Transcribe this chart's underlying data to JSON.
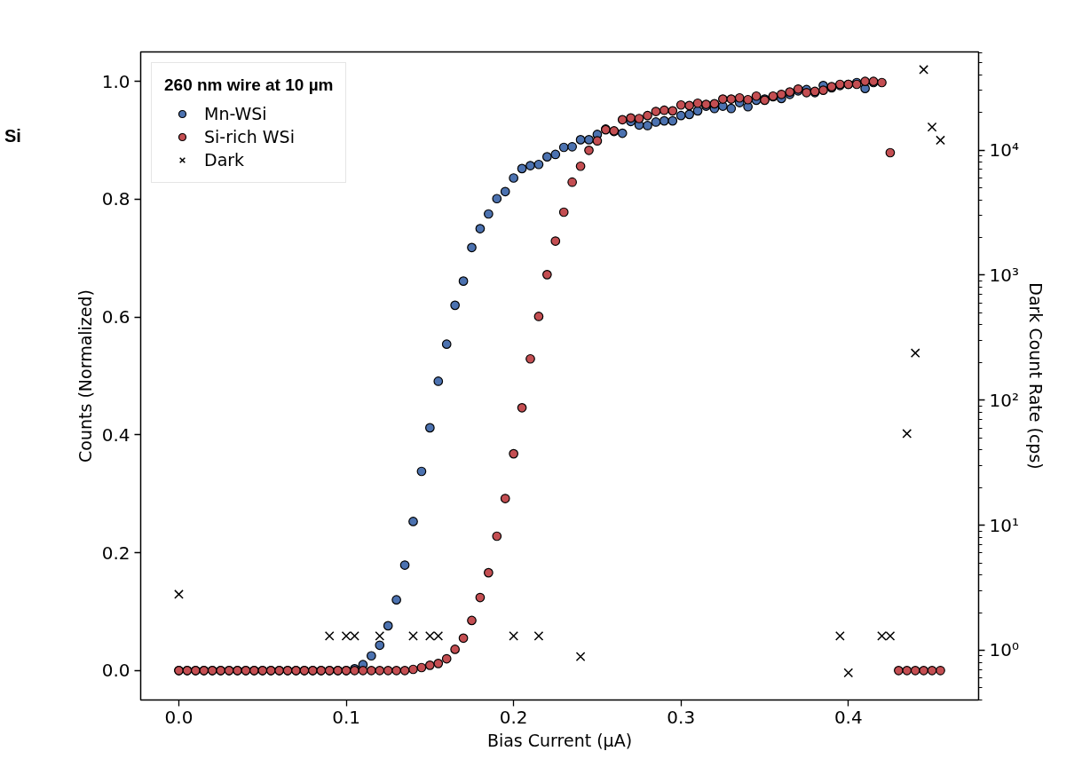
{
  "chart_data": {
    "type": "scatter",
    "xlabel": "Bias Current (μA)",
    "ylabel": "Counts (Normalized)",
    "y2label": "Dark Count Rate (cps)",
    "legend_title": "260 nm wire at 10 µm",
    "legend": "top left",
    "grid": false,
    "annotations": [
      "Si"
    ],
    "xlim": [
      -0.0228,
      0.4778
    ],
    "xticks": [
      {
        "value": 0,
        "label": "0.0"
      },
      0.1,
      0.2,
      0.3,
      0.4
    ],
    "ylim": [
      -0.05,
      1.05
    ],
    "yticks": [
      {
        "value": 0,
        "label": "0.0"
      },
      0.2,
      0.4,
      0.6,
      0.8,
      {
        "value": 1,
        "label": "1.0"
      }
    ],
    "log": "y2",
    "y2lim": [
      0.4,
      61000
    ],
    "y2ticks": [
      {
        "value": 1,
        "label": "10⁰"
      },
      {
        "value": 10,
        "label": "10¹"
      },
      {
        "value": 100,
        "label": "10²"
      },
      {
        "value": 1000,
        "label": "10³"
      },
      {
        "value": 10000,
        "label": "10⁴"
      }
    ],
    "series": [
      {
        "name": "Mn-WSi",
        "color": "#4c72b0",
        "marker": "circle",
        "x": [
          0.0,
          0.005,
          0.01,
          0.015,
          0.02,
          0.025,
          0.03,
          0.035,
          0.04,
          0.045,
          0.05,
          0.055,
          0.06,
          0.065,
          0.07,
          0.075,
          0.08,
          0.085,
          0.09,
          0.095,
          0.1,
          0.105,
          0.11,
          0.115,
          0.12,
          0.125,
          0.13,
          0.135,
          0.14,
          0.145,
          0.15,
          0.155,
          0.16,
          0.165,
          0.17,
          0.175,
          0.18,
          0.185,
          0.19,
          0.195,
          0.2,
          0.205,
          0.21,
          0.215,
          0.22,
          0.225,
          0.23,
          0.235,
          0.24,
          0.245,
          0.25,
          0.255,
          0.26,
          0.265,
          0.27,
          0.275,
          0.28,
          0.285,
          0.29,
          0.295,
          0.3,
          0.305,
          0.31,
          0.315,
          0.32,
          0.325,
          0.33,
          0.335,
          0.34,
          0.345,
          0.35,
          0.355,
          0.36,
          0.365,
          0.37,
          0.375,
          0.38,
          0.385,
          0.39,
          0.395,
          0.4,
          0.405,
          0.41,
          0.415
        ],
        "values": [
          0,
          0,
          0,
          0,
          0,
          0,
          0,
          0,
          0,
          0,
          0,
          0,
          0,
          0,
          0,
          0,
          0,
          0,
          0,
          0,
          0,
          0.003,
          0.01,
          0.025,
          0.043,
          0.076,
          0.12,
          0.179,
          0.253,
          0.338,
          0.412,
          0.491,
          0.554,
          0.62,
          0.661,
          0.718,
          0.75,
          0.775,
          0.801,
          0.813,
          0.836,
          0.852,
          0.857,
          0.859,
          0.872,
          0.876,
          0.888,
          0.889,
          0.901,
          0.901,
          0.91,
          0.919,
          0.915,
          0.912,
          0.932,
          0.926,
          0.925,
          0.931,
          0.933,
          0.933,
          0.942,
          0.944,
          0.95,
          0.958,
          0.954,
          0.958,
          0.954,
          0.964,
          0.957,
          0.968,
          0.97,
          0.974,
          0.971,
          0.978,
          0.984,
          0.986,
          0.981,
          0.993,
          0.989,
          0.993,
          0.995,
          0.998,
          0.988,
          0.998
        ]
      },
      {
        "name": "Si-rich WSi",
        "color": "#c44e52",
        "marker": "circle",
        "x": [
          0.0,
          0.005,
          0.01,
          0.015,
          0.02,
          0.025,
          0.03,
          0.035,
          0.04,
          0.045,
          0.05,
          0.055,
          0.06,
          0.065,
          0.07,
          0.075,
          0.08,
          0.085,
          0.09,
          0.095,
          0.1,
          0.105,
          0.11,
          0.115,
          0.12,
          0.125,
          0.13,
          0.135,
          0.14,
          0.145,
          0.15,
          0.155,
          0.16,
          0.165,
          0.17,
          0.175,
          0.18,
          0.185,
          0.19,
          0.195,
          0.2,
          0.205,
          0.21,
          0.215,
          0.22,
          0.225,
          0.23,
          0.235,
          0.24,
          0.245,
          0.25,
          0.255,
          0.26,
          0.265,
          0.27,
          0.275,
          0.28,
          0.285,
          0.29,
          0.295,
          0.3,
          0.305,
          0.31,
          0.315,
          0.32,
          0.325,
          0.33,
          0.335,
          0.34,
          0.345,
          0.35,
          0.355,
          0.36,
          0.365,
          0.37,
          0.375,
          0.38,
          0.385,
          0.39,
          0.395,
          0.4,
          0.405,
          0.41,
          0.415,
          0.42,
          0.425,
          0.43,
          0.435,
          0.44,
          0.445,
          0.45,
          0.455
        ],
        "values": [
          0,
          0,
          0,
          0,
          0,
          0,
          0,
          0,
          0,
          0,
          0,
          0,
          0,
          0,
          0,
          0,
          0,
          0,
          0,
          0,
          0,
          0,
          0,
          0,
          0,
          0,
          0,
          0,
          0.002,
          0.005,
          0.009,
          0.012,
          0.02,
          0.036,
          0.055,
          0.085,
          0.124,
          0.166,
          0.228,
          0.292,
          0.368,
          0.446,
          0.529,
          0.601,
          0.672,
          0.729,
          0.778,
          0.829,
          0.856,
          0.883,
          0.899,
          0.918,
          0.916,
          0.935,
          0.938,
          0.937,
          0.942,
          0.949,
          0.951,
          0.95,
          0.96,
          0.959,
          0.963,
          0.961,
          0.962,
          0.97,
          0.97,
          0.972,
          0.969,
          0.975,
          0.968,
          0.975,
          0.978,
          0.982,
          0.987,
          0.981,
          0.983,
          0.985,
          0.991,
          0.995,
          0.995,
          0.995,
          1.0,
          1.0,
          0.998,
          0.879,
          0,
          0,
          0,
          0,
          0,
          0
        ]
      },
      {
        "name": "Dark",
        "color": "#000000",
        "marker": "cross",
        "axis": "y2",
        "x": [
          0.0,
          0.09,
          0.1,
          0.105,
          0.12,
          0.14,
          0.15,
          0.155,
          0.2,
          0.215,
          0.24,
          0.395,
          0.4,
          0.42,
          0.425,
          0.435,
          0.44,
          0.445,
          0.45,
          0.455
        ],
        "values": [
          2.8,
          1.3,
          1.3,
          1.3,
          1.3,
          1.3,
          1.3,
          1.3,
          1.3,
          1.3,
          0.89,
          1.3,
          0.66,
          1.3,
          1.3,
          54,
          238,
          44000,
          15300,
          12000
        ]
      }
    ]
  }
}
